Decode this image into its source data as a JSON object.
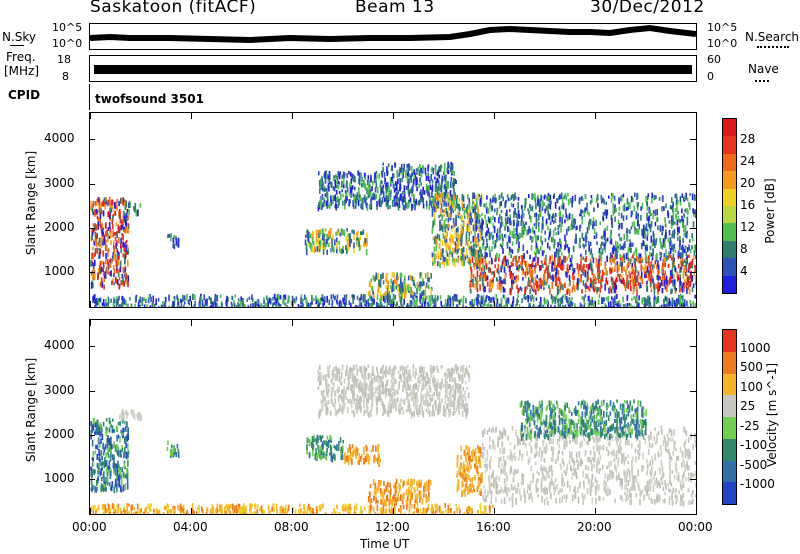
{
  "header": {
    "title": "Saskatoon (fitACF)",
    "beam": "Beam 13",
    "date": "30/Dec/2012"
  },
  "top_panels": {
    "nsky": {
      "label": "N.Sky",
      "tick_top": "10^5",
      "tick_bottom": "10^0",
      "right_tick_top": "10^5",
      "right_tick_bottom": "10^0",
      "right_label": "N.Search"
    },
    "freq": {
      "label_line1": "Freq.",
      "label_line2": "[MHz]",
      "tick_top": "18",
      "tick_bottom": "8",
      "right_tick_top": "60",
      "right_tick_bottom": "0",
      "right_label": "Nave"
    },
    "cpid": {
      "label": "CPID",
      "text": "twofsound 3501"
    }
  },
  "axes": {
    "x_ticks": [
      "00:00",
      "04:00",
      "08:00",
      "12:00",
      "16:00",
      "20:00",
      "00:00"
    ],
    "x_label": "Time UT",
    "y_label": "Slant Range [km]",
    "y_ticks": [
      "1000",
      "2000",
      "3000",
      "4000"
    ]
  },
  "colorbars": {
    "power": {
      "label": "Power [dB]",
      "ticks": [
        "4",
        "8",
        "12",
        "16",
        "20",
        "24",
        "28"
      ],
      "colors": [
        "#1f1fe0",
        "#2f52b8",
        "#2f7f6e",
        "#4fbf4f",
        "#b8d83f",
        "#f0d020",
        "#f59a1e",
        "#f06a18",
        "#e8321e",
        "#e01818"
      ]
    },
    "velocity": {
      "label": "Velocity [m s^-1]",
      "ticks": [
        "1000",
        "500",
        "100",
        "25",
        "-25",
        "-100",
        "-500",
        "-1000"
      ],
      "colors": [
        "#2342c8",
        "#2f6fa8",
        "#2f8a6a",
        "#6fd04f",
        "#c8c8c0",
        "#f5b42a",
        "#f07a1e",
        "#e8321e"
      ]
    }
  },
  "chart_data": [
    {
      "type": "heatmap",
      "name": "Power",
      "x_unit": "hours UT",
      "xlim": [
        0,
        24
      ],
      "ylim": [
        200,
        4600
      ],
      "regions": [
        {
          "t0": 0.0,
          "t1": 1.5,
          "r0": 700,
          "r1": 2700,
          "level": "high"
        },
        {
          "t0": 1.5,
          "t1": 2.0,
          "r0": 2400,
          "r1": 2600,
          "level": "low"
        },
        {
          "t0": 3.0,
          "t1": 3.5,
          "r0": 1600,
          "r1": 1900,
          "level": "low"
        },
        {
          "t0": 8.5,
          "t1": 11.0,
          "r0": 1500,
          "r1": 2000,
          "level": "medium"
        },
        {
          "t0": 9.0,
          "t1": 11.5,
          "r0": 2500,
          "r1": 3300,
          "level": "low"
        },
        {
          "t0": 11.0,
          "t1": 13.5,
          "r0": 500,
          "r1": 1000,
          "level": "medium"
        },
        {
          "t0": 11.5,
          "t1": 14.5,
          "r0": 2500,
          "r1": 3500,
          "level": "low"
        },
        {
          "t0": 13.5,
          "t1": 15.5,
          "r0": 1200,
          "r1": 2800,
          "level": "medium"
        },
        {
          "t0": 15.0,
          "t1": 24.0,
          "r0": 600,
          "r1": 1400,
          "level": "high"
        },
        {
          "t0": 15.0,
          "t1": 24.0,
          "r0": 1400,
          "r1": 2800,
          "level": "low"
        },
        {
          "t0": 0.0,
          "t1": 24.0,
          "r0": 200,
          "r1": 500,
          "level": "low"
        }
      ]
    },
    {
      "type": "heatmap",
      "name": "Velocity",
      "x_unit": "hours UT",
      "xlim": [
        0,
        24
      ],
      "ylim": [
        200,
        4600
      ],
      "regions": [
        {
          "t0": 0.0,
          "t1": 1.5,
          "r0": 800,
          "r1": 2400,
          "level": "mixed-green-blue"
        },
        {
          "t0": 1.0,
          "t1": 2.0,
          "r0": 2400,
          "r1": 2600,
          "level": "grey"
        },
        {
          "t0": 3.0,
          "t1": 3.5,
          "r0": 1600,
          "r1": 1900,
          "level": "green"
        },
        {
          "t0": 8.5,
          "t1": 10.0,
          "r0": 1500,
          "r1": 2000,
          "level": "green"
        },
        {
          "t0": 10.0,
          "t1": 11.5,
          "r0": 1400,
          "r1": 1800,
          "level": "orange"
        },
        {
          "t0": 11.0,
          "t1": 13.5,
          "r0": 500,
          "r1": 1000,
          "level": "orange"
        },
        {
          "t0": 9.0,
          "t1": 15.0,
          "r0": 2500,
          "r1": 3600,
          "level": "grey"
        },
        {
          "t0": 14.5,
          "t1": 15.5,
          "r0": 700,
          "r1": 1800,
          "level": "orange"
        },
        {
          "t0": 15.5,
          "t1": 24.0,
          "r0": 500,
          "r1": 2200,
          "level": "grey"
        },
        {
          "t0": 17.0,
          "t1": 22.0,
          "r0": 2000,
          "r1": 2800,
          "level": "green"
        },
        {
          "t0": 0.0,
          "t1": 16.0,
          "r0": 200,
          "r1": 450,
          "level": "orange-low"
        }
      ]
    }
  ]
}
